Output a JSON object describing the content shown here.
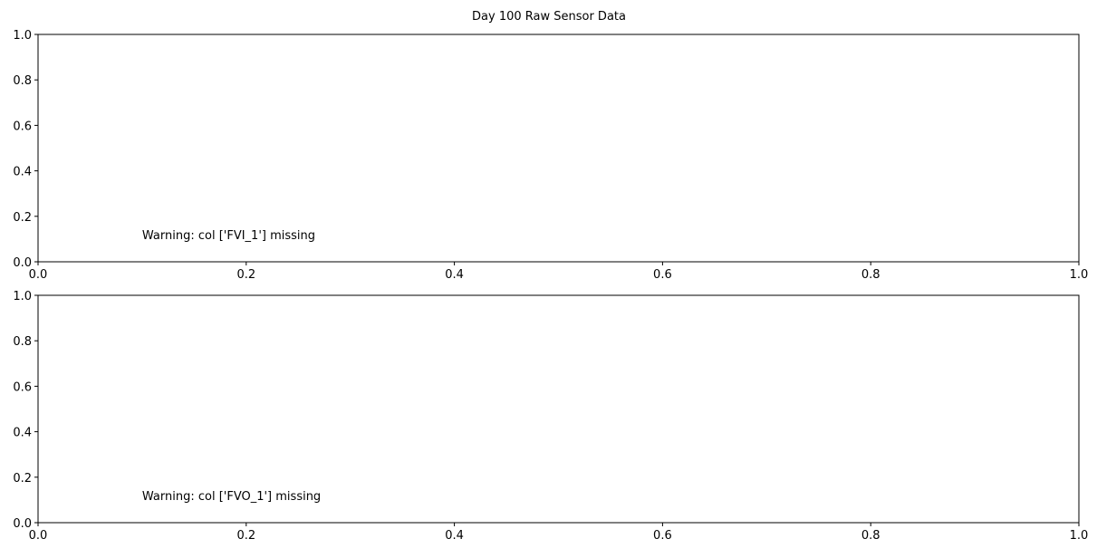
{
  "chart_data": {
    "title": "Day 100 Raw Sensor Data",
    "subplots": [
      {
        "type": "line",
        "series": [],
        "xlim": [
          0,
          1
        ],
        "ylim": [
          0,
          1
        ],
        "xticks": [
          "0.0",
          "0.2",
          "0.4",
          "0.6",
          "0.8",
          "1.0"
        ],
        "yticks": [
          "0.0",
          "0.2",
          "0.4",
          "0.6",
          "0.8",
          "1.0"
        ],
        "grid": false,
        "annotation": {
          "text": "Warning: col ['FVI_1'] missing",
          "x": 0.1,
          "y": 0.1
        }
      },
      {
        "type": "line",
        "series": [],
        "xlim": [
          0,
          1
        ],
        "ylim": [
          0,
          1
        ],
        "xticks": [
          "0.0",
          "0.2",
          "0.4",
          "0.6",
          "0.8",
          "1.0"
        ],
        "yticks": [
          "0.0",
          "0.2",
          "0.4",
          "0.6",
          "0.8",
          "1.0"
        ],
        "grid": false,
        "annotation": {
          "text": "Warning: col ['FVO_1'] missing",
          "x": 0.1,
          "y": 0.1
        }
      }
    ]
  }
}
